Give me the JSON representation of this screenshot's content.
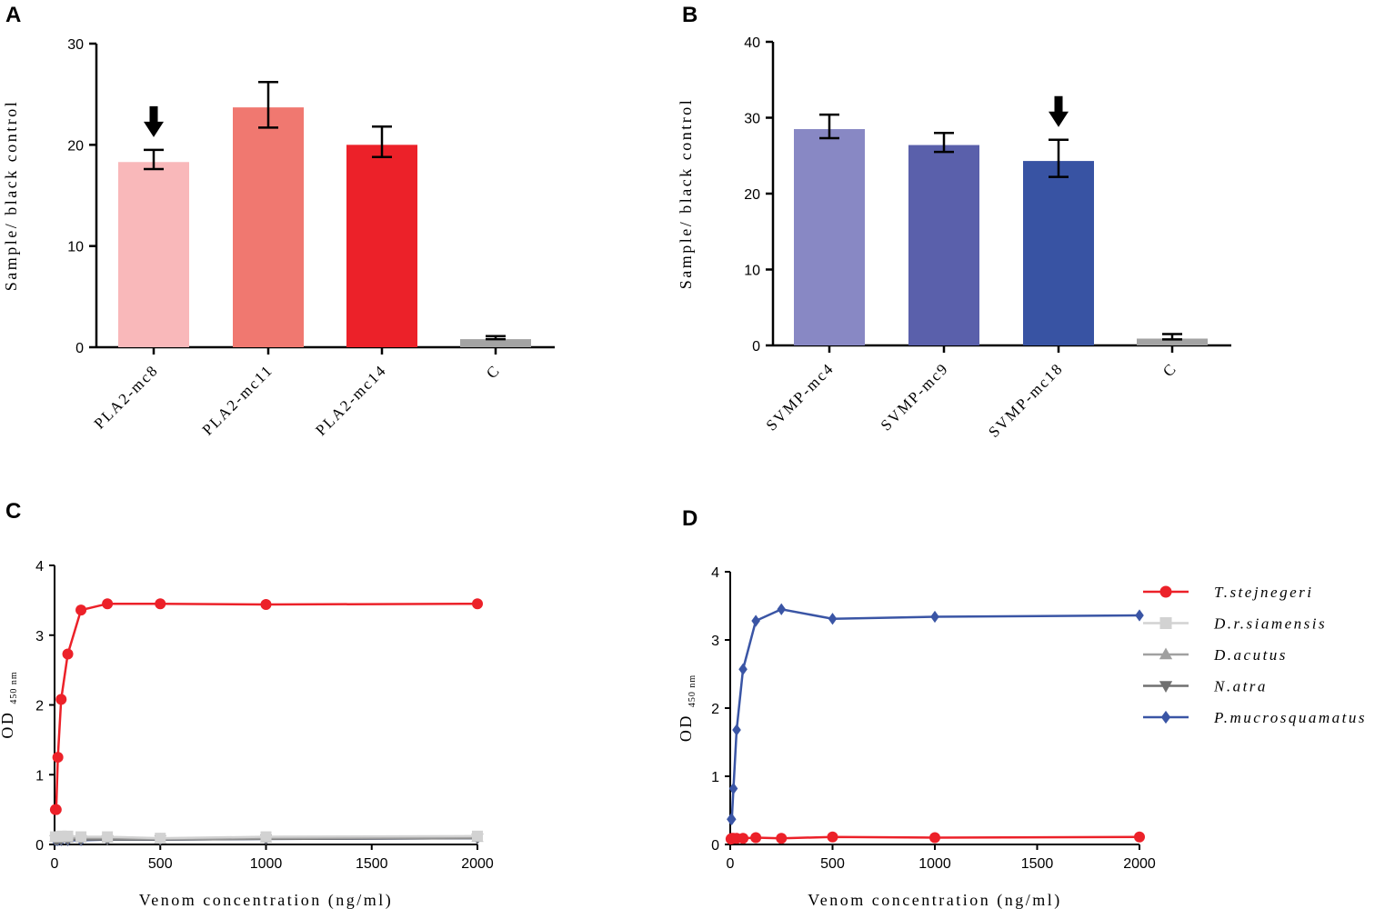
{
  "chart_data": [
    {
      "panel": "A",
      "type": "bar",
      "categories": [
        "PLA2-mc8",
        "PLA2-mc11",
        "PLA2-mc14",
        "C"
      ],
      "values": [
        18.3,
        23.7,
        20.0,
        0.8
      ],
      "errors": [
        [
          17.6,
          19.5
        ],
        [
          21.7,
          26.2
        ],
        [
          18.8,
          21.8
        ],
        [
          0.8,
          1.1
        ]
      ],
      "colors": [
        "#f9b8ba",
        "#f07870",
        "#ec2129",
        "#a3a3a3"
      ],
      "arrow_on": "PLA2-mc8",
      "title": "",
      "xlabel": "",
      "ylabel": "Sample/ black control",
      "ylim": [
        0,
        30
      ],
      "yticks": [
        0,
        10,
        20,
        30
      ]
    },
    {
      "panel": "B",
      "type": "bar",
      "categories": [
        "SVMP-mc4",
        "SVMP-mc9",
        "SVMP-mc18",
        "C"
      ],
      "values": [
        28.5,
        26.4,
        24.3,
        0.9
      ],
      "errors": [
        [
          27.3,
          30.4
        ],
        [
          25.5,
          28.0
        ],
        [
          22.2,
          27.1
        ],
        [
          0.8,
          1.5
        ]
      ],
      "colors": [
        "#8888c4",
        "#5a60ab",
        "#3853a3",
        "#a3a3a3"
      ],
      "arrow_on": "SVMP-mc18",
      "title": "",
      "xlabel": "",
      "ylabel": "Sample/ black control",
      "ylim": [
        0,
        40
      ],
      "yticks": [
        0,
        10,
        20,
        30,
        40
      ]
    },
    {
      "panel": "C",
      "type": "line",
      "xlabel": "Venom concentration (ng/ml)",
      "ylabel": "OD",
      "ylabel_sub": "450 nm",
      "xlim": [
        0,
        2000
      ],
      "ylim": [
        0,
        4
      ],
      "xticks": [
        0,
        500,
        1000,
        1500,
        2000
      ],
      "yticks": [
        0,
        1,
        2,
        3,
        4
      ],
      "x": [
        3.9,
        7.8,
        15.6,
        31.25,
        62.5,
        125,
        250,
        500,
        1000,
        2000
      ],
      "series": [
        {
          "name": "T.stejnegeri",
          "color": "#ec2129",
          "marker": "circle",
          "values": [
            0.5,
            0.5,
            1.25,
            2.08,
            2.73,
            3.36,
            3.45,
            3.45,
            3.44,
            3.45
          ]
        },
        {
          "name": "D.r.siamensis",
          "color": "#d2d2d2",
          "marker": "square",
          "values": [
            0.11,
            0.11,
            0.11,
            0.12,
            0.12,
            0.11,
            0.11,
            0.09,
            0.11,
            0.12
          ]
        },
        {
          "name": "D.acutus",
          "color": "#a0a0a0",
          "marker": "triangle-up",
          "values": [
            0.1,
            0.1,
            0.1,
            0.1,
            0.09,
            0.09,
            0.09,
            0.08,
            0.09,
            0.1
          ]
        },
        {
          "name": "N.atra",
          "color": "#707070",
          "marker": "triangle-down",
          "values": [
            0.07,
            0.07,
            0.07,
            0.07,
            0.07,
            0.07,
            0.07,
            0.07,
            0.08,
            0.09
          ]
        },
        {
          "name": "P.mucrosquamatus",
          "color": "#3a55a5",
          "marker": "diamond",
          "values": [
            0.06,
            0.06,
            0.06,
            0.06,
            0.06,
            0.06,
            0.07,
            0.07,
            0.08,
            0.09
          ]
        }
      ]
    },
    {
      "panel": "D",
      "type": "line",
      "xlabel": "Venom concentration (ng/ml)",
      "ylabel": "OD",
      "ylabel_sub": "450 nm",
      "xlim": [
        0,
        2000
      ],
      "ylim": [
        0,
        4
      ],
      "xticks": [
        0,
        500,
        1000,
        1500,
        2000
      ],
      "yticks": [
        0,
        1,
        2,
        3,
        4
      ],
      "x": [
        3.9,
        7.8,
        15.6,
        31.25,
        62.5,
        125,
        250,
        500,
        1000,
        2000
      ],
      "legend": {
        "placement": "right",
        "entries": [
          "T.stejnegeri",
          "D.r.siamensis",
          "D.acutus",
          "N.atra",
          "P.mucrosquamatus"
        ]
      },
      "series": [
        {
          "name": "P.mucrosquamatus",
          "color": "#3a55a5",
          "marker": "diamond",
          "values": [
            0.37,
            0.37,
            0.82,
            1.68,
            2.57,
            3.28,
            3.45,
            3.31,
            3.34,
            3.36
          ]
        },
        {
          "name": "T.stejnegeri",
          "color": "#ec2129",
          "marker": "circle",
          "values": [
            0.08,
            0.09,
            0.09,
            0.09,
            0.09,
            0.1,
            0.09,
            0.11,
            0.1,
            0.11
          ]
        }
      ]
    }
  ],
  "panel_labels": [
    "A",
    "B",
    "C",
    "D"
  ],
  "legend_styles": {
    "T.stejnegeri": {
      "color": "#ec2129",
      "marker": "circle"
    },
    "D.r.siamensis": {
      "color": "#d2d2d2",
      "marker": "square"
    },
    "D.acutus": {
      "color": "#a0a0a0",
      "marker": "triangle-up"
    },
    "N.atra": {
      "color": "#707070",
      "marker": "triangle-down"
    },
    "P.mucrosquamatus": {
      "color": "#3a55a5",
      "marker": "diamond"
    }
  }
}
